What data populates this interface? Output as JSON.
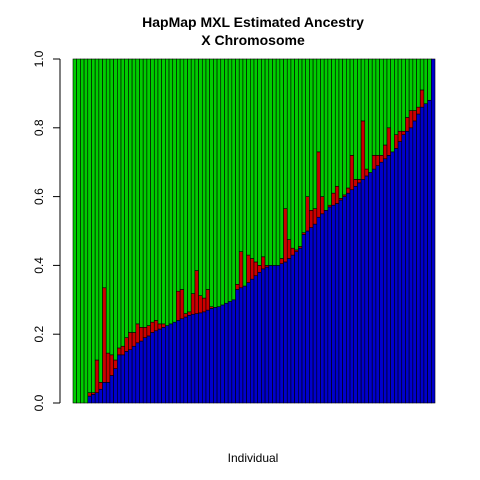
{
  "chart_data": {
    "type": "bar",
    "stacked": true,
    "title": "HapMap MXL Estimated Ancestry",
    "subtitle": "X Chromosome",
    "xlabel": "Individual",
    "ylabel": "",
    "ylim": [
      0,
      1
    ],
    "yticks": [
      "0.0",
      "0.2",
      "0.4",
      "0.6",
      "0.8",
      "1.0"
    ],
    "grid": false,
    "colors": {
      "blue": "#0000cc",
      "red": "#cc0000",
      "green": "#00cc00",
      "outline": "#000000"
    },
    "series_blue": [
      0,
      0,
      0,
      0,
      0.02,
      0.025,
      0.03,
      0.04,
      0.06,
      0.06,
      0.08,
      0.1,
      0.14,
      0.14,
      0.15,
      0.155,
      0.165,
      0.175,
      0.18,
      0.19,
      0.195,
      0.205,
      0.21,
      0.215,
      0.22,
      0.225,
      0.23,
      0.235,
      0.24,
      0.245,
      0.25,
      0.255,
      0.258,
      0.26,
      0.262,
      0.265,
      0.27,
      0.275,
      0.278,
      0.28,
      0.285,
      0.29,
      0.295,
      0.3,
      0.33,
      0.335,
      0.34,
      0.35,
      0.36,
      0.37,
      0.38,
      0.39,
      0.395,
      0.4,
      0.4,
      0.4,
      0.405,
      0.41,
      0.42,
      0.43,
      0.44,
      0.45,
      0.49,
      0.5,
      0.51,
      0.52,
      0.54,
      0.55,
      0.56,
      0.57,
      0.575,
      0.58,
      0.59,
      0.6,
      0.61,
      0.62,
      0.63,
      0.64,
      0.65,
      0.66,
      0.67,
      0.68,
      0.69,
      0.7,
      0.71,
      0.72,
      0.73,
      0.74,
      0.76,
      0.78,
      0.79,
      0.8,
      0.82,
      0.84,
      0.86,
      0.87,
      0.88,
      1.0
    ],
    "series_red": [
      0,
      0,
      0,
      0,
      0.01,
      0.005,
      0.095,
      0.02,
      0.275,
      0.085,
      0.06,
      0.025,
      0.02,
      0.025,
      0.04,
      0.05,
      0.04,
      0.055,
      0.04,
      0.03,
      0.03,
      0.03,
      0.03,
      0.015,
      0.01,
      0.0,
      0.0,
      0.0,
      0.085,
      0.085,
      0.01,
      0.01,
      0.06,
      0.125,
      0.05,
      0.04,
      0.06,
      0.005,
      0.0,
      0.0,
      0.0,
      0.0,
      0.0,
      0.0,
      0.015,
      0.105,
      0.0,
      0.08,
      0.06,
      0.04,
      0.02,
      0.035,
      0.005,
      0.0,
      0.0,
      0.0,
      0.015,
      0.155,
      0.055,
      0.02,
      0.005,
      0.005,
      0.005,
      0.1,
      0.05,
      0.045,
      0.19,
      0.05,
      0.0,
      0.005,
      0.035,
      0.05,
      0.005,
      0.005,
      0.015,
      0.1,
      0.02,
      0.01,
      0.17,
      0.02,
      0.0,
      0.04,
      0.03,
      0.02,
      0.04,
      0.08,
      0.0,
      0.04,
      0.03,
      0.01,
      0.04,
      0.05,
      0.03,
      0.02,
      0.05,
      0.0,
      0.0,
      0.0
    ],
    "series_green": [
      1.0,
      1.0,
      1.0,
      1.0,
      0.97,
      0.97,
      0.875,
      0.94,
      0.665,
      0.855,
      0.86,
      0.875,
      0.84,
      0.835,
      0.81,
      0.795,
      0.795,
      0.77,
      0.78,
      0.78,
      0.775,
      0.765,
      0.76,
      0.77,
      0.77,
      0.775,
      0.77,
      0.765,
      0.675,
      0.67,
      0.74,
      0.735,
      0.682,
      0.615,
      0.688,
      0.695,
      0.67,
      0.72,
      0.722,
      0.72,
      0.715,
      0.71,
      0.705,
      0.7,
      0.655,
      0.56,
      0.66,
      0.57,
      0.58,
      0.59,
      0.6,
      0.575,
      0.6,
      0.6,
      0.6,
      0.6,
      0.58,
      0.435,
      0.525,
      0.55,
      0.555,
      0.545,
      0.505,
      0.4,
      0.44,
      0.435,
      0.27,
      0.4,
      0.44,
      0.425,
      0.39,
      0.37,
      0.405,
      0.395,
      0.375,
      0.28,
      0.35,
      0.35,
      0.18,
      0.32,
      0.33,
      0.28,
      0.28,
      0.28,
      0.25,
      0.2,
      0.27,
      0.22,
      0.21,
      0.21,
      0.17,
      0.15,
      0.15,
      0.14,
      0.09,
      0.13,
      0.12,
      0.0
    ]
  }
}
